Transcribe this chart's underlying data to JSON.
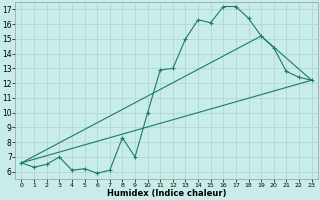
{
  "xlabel": "Humidex (Indice chaleur)",
  "bg_color": "#c8ece8",
  "line_color": "#1a7a6e",
  "grid_color": "#b0d8d0",
  "xlim": [
    -0.5,
    23.5
  ],
  "ylim": [
    5.5,
    17.5
  ],
  "xticks": [
    0,
    1,
    2,
    3,
    4,
    5,
    6,
    7,
    8,
    9,
    10,
    11,
    12,
    13,
    14,
    15,
    16,
    17,
    18,
    19,
    20,
    21,
    22,
    23
  ],
  "yticks": [
    6,
    7,
    8,
    9,
    10,
    11,
    12,
    13,
    14,
    15,
    16,
    17
  ],
  "line1_x": [
    0,
    1,
    2,
    3,
    4,
    5,
    6,
    7,
    8,
    9,
    10,
    11,
    12,
    13,
    14,
    15,
    16,
    17,
    18,
    19,
    20,
    21,
    22,
    23
  ],
  "line1_y": [
    6.6,
    6.3,
    6.5,
    7.0,
    6.1,
    6.2,
    5.9,
    6.1,
    8.3,
    7.0,
    10.0,
    12.9,
    13.0,
    15.0,
    16.3,
    16.1,
    17.2,
    17.2,
    16.4,
    15.2,
    14.4,
    12.8,
    12.4,
    12.2
  ],
  "line2_x": [
    0,
    23
  ],
  "line2_y": [
    6.6,
    12.2
  ],
  "line3_x": [
    0,
    19,
    23
  ],
  "line3_y": [
    6.6,
    15.2,
    12.2
  ]
}
